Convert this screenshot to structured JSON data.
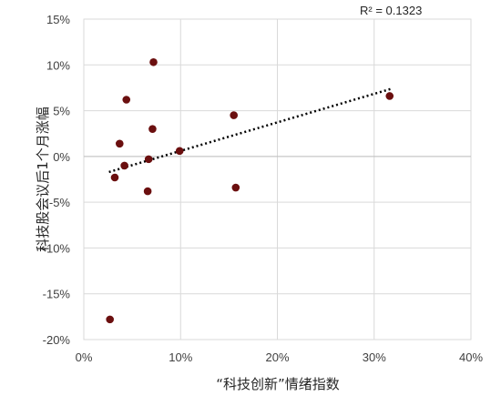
{
  "chart_data": {
    "type": "scatter",
    "xlabel": "“科技创新”情绪指数",
    "ylabel": "科技股会议后1个月涨幅",
    "annotation": "R² = 0.1323",
    "xlim": [
      0,
      0.4
    ],
    "ylim": [
      -0.2,
      0.15
    ],
    "x_ticks": [
      0,
      0.1,
      0.2,
      0.3,
      0.4
    ],
    "x_tick_labels": [
      "0%",
      "10%",
      "20%",
      "30%",
      "40%"
    ],
    "y_ticks": [
      0.15,
      0.1,
      0.05,
      0,
      -0.05,
      -0.1,
      -0.15,
      -0.2
    ],
    "y_tick_labels": [
      "15%",
      "10%",
      "5%",
      "0%",
      "-5%",
      "-10%",
      "-15%",
      "-20%"
    ],
    "grid": true,
    "marker_color": "#6b0f0f",
    "trendline": {
      "style": "dotted",
      "x": [
        0.026,
        0.318
      ],
      "y": [
        -0.017,
        0.074
      ]
    },
    "series": [
      {
        "points": [
          [
            0.027,
            -0.178
          ],
          [
            0.032,
            -0.023
          ],
          [
            0.037,
            0.014
          ],
          [
            0.042,
            -0.01
          ],
          [
            0.044,
            0.062
          ],
          [
            0.066,
            -0.038
          ],
          [
            0.067,
            -0.003
          ],
          [
            0.071,
            0.03
          ],
          [
            0.072,
            0.103
          ],
          [
            0.099,
            0.006
          ],
          [
            0.155,
            0.045
          ],
          [
            0.157,
            -0.034
          ],
          [
            0.316,
            0.066
          ]
        ]
      }
    ]
  }
}
